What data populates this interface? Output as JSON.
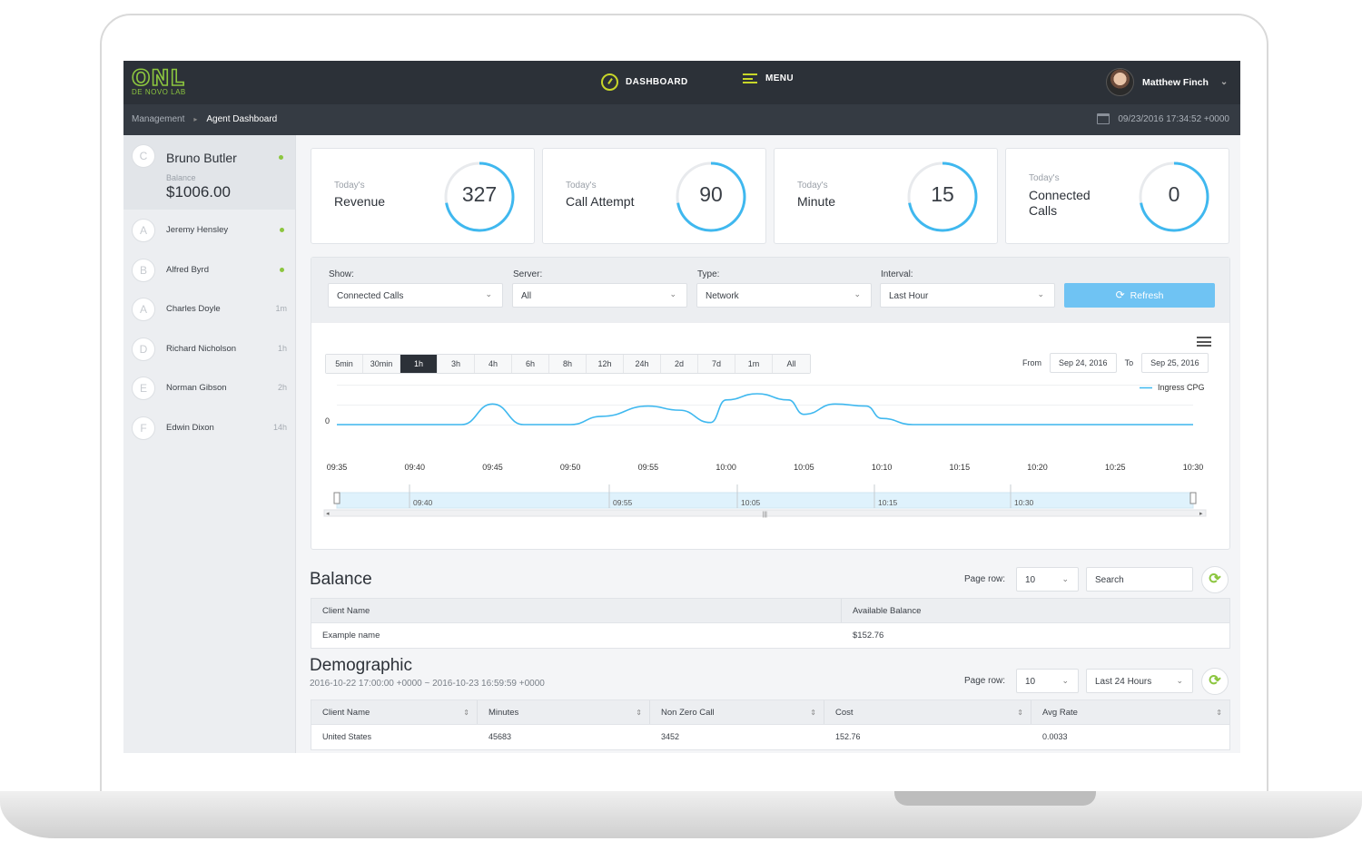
{
  "header": {
    "logo_main": "ONL",
    "logo_sub": "DE NOVO LAB",
    "nav_dashboard": "DASHBOARD",
    "nav_menu": "MENU",
    "user_name": "Matthew Finch"
  },
  "breadcrumb": {
    "root": "Management",
    "current": "Agent Dashboard",
    "datetime": "09/23/2016 17:34:52 +0000"
  },
  "sidebar": {
    "active": {
      "letter": "C",
      "name": "Bruno Butler",
      "balance_label": "Balance",
      "balance": "$1006.00"
    },
    "items": [
      {
        "letter": "A",
        "name": "Jeremy Hensley",
        "time": ""
      },
      {
        "letter": "B",
        "name": "Alfred Byrd",
        "time": ""
      },
      {
        "letter": "A",
        "name": "Charles Doyle",
        "time": "1m"
      },
      {
        "letter": "D",
        "name": "Richard Nicholson",
        "time": "1h"
      },
      {
        "letter": "E",
        "name": "Norman Gibson",
        "time": "2h"
      },
      {
        "letter": "F",
        "name": "Edwin Dixon",
        "time": "14h"
      }
    ]
  },
  "stats": [
    {
      "small": "Today's",
      "big": "Revenue",
      "value": "327",
      "fill": 0.72
    },
    {
      "small": "Today's",
      "big": "Call Attempt",
      "value": "90",
      "fill": 0.72
    },
    {
      "small": "Today's",
      "big": "Minute",
      "value": "15",
      "fill": 0.72
    },
    {
      "small": "Today's",
      "big1": "Connected",
      "big2": "Calls",
      "value": "0",
      "fill": 0.72
    }
  ],
  "filters": {
    "show_label": "Show:",
    "show_value": "Connected Calls",
    "server_label": "Server:",
    "server_value": "All",
    "type_label": "Type:",
    "type_value": "Network",
    "interval_label": "Interval:",
    "interval_value": "Last Hour",
    "refresh": "Refresh"
  },
  "range_buttons": [
    "5min",
    "30min",
    "1h",
    "3h",
    "4h",
    "6h",
    "8h",
    "12h",
    "24h",
    "2d",
    "7d",
    "1m",
    "All"
  ],
  "range_active": "1h",
  "date_range": {
    "from_label": "From",
    "from": "Sep 24, 2016",
    "to_label": "To",
    "to": "Sep 25, 2016"
  },
  "chart_data": {
    "type": "line",
    "series": [
      {
        "name": "Ingress CPG",
        "x": [
          "09:35",
          "09:40",
          "09:43",
          "09:45",
          "09:47",
          "09:50",
          "09:52",
          "09:55",
          "09:57",
          "09:59",
          "10:00",
          "10:02",
          "10:04",
          "10:05",
          "10:07",
          "10:09",
          "10:10",
          "10:12",
          "10:15",
          "10:20",
          "10:25",
          "10:30"
        ],
        "values": [
          0,
          0,
          0,
          1,
          0,
          0,
          0.4,
          0.9,
          0.7,
          0.1,
          1.2,
          1.5,
          1.2,
          0.5,
          1.0,
          0.9,
          0.3,
          0,
          0,
          0,
          0,
          0
        ]
      }
    ],
    "x_ticks": [
      "09:35",
      "09:40",
      "09:45",
      "09:50",
      "09:55",
      "10:00",
      "10:05",
      "10:10",
      "10:15",
      "10:20",
      "10:25",
      "10:30"
    ],
    "y_ticks": [
      "0"
    ],
    "legend_position": "top-right",
    "navigator_ticks": [
      "09:40",
      "09:55",
      "10:05",
      "10:15",
      "10:30"
    ],
    "grid": true
  },
  "balance": {
    "title": "Balance",
    "page_row_label": "Page row:",
    "page_row": "10",
    "search_placeholder": "Search",
    "columns": [
      "Client Name",
      "Available Balance"
    ],
    "rows": [
      [
        "Example name",
        "$152.76"
      ]
    ]
  },
  "demographic": {
    "title": "Demographic",
    "subtitle": "2016-10-22 17:00:00 +0000 ~ 2016-10-23 16:59:59 +0000",
    "page_row_label": "Page row:",
    "page_row": "10",
    "period": "Last 24 Hours",
    "columns": [
      "Client Name",
      "Minutes",
      "Non Zero Call",
      "Cost",
      "Avg Rate"
    ],
    "rows": [
      [
        "United States",
        "45683",
        "3452",
        "152.76",
        "0.0033"
      ]
    ]
  },
  "colors": {
    "accent_green": "#8cc63f",
    "chart_blue": "#3fb8ef",
    "topbar": "#2c3138",
    "refresh_blue": "#6fc3f3"
  }
}
